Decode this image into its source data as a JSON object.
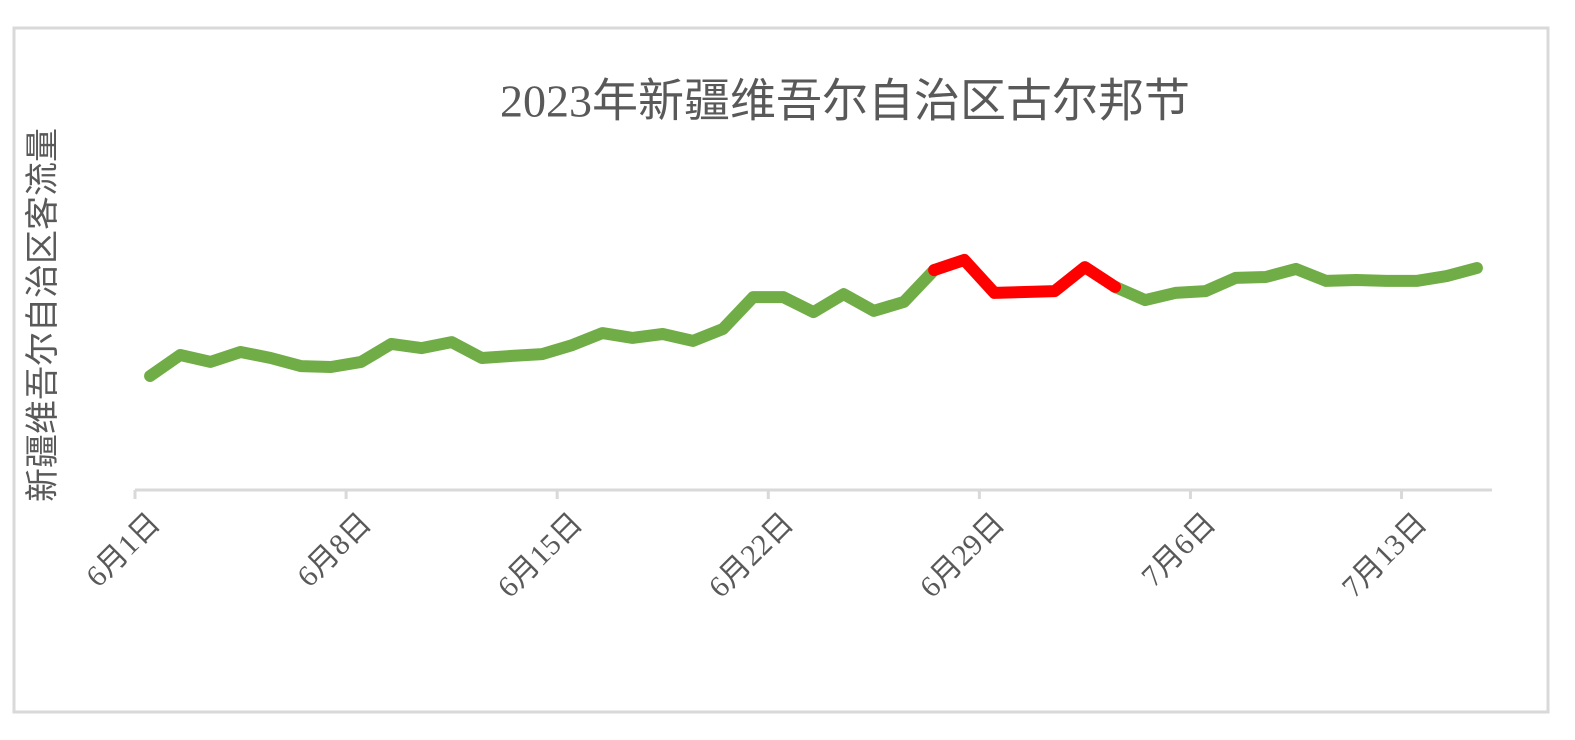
{
  "chart_data": {
    "type": "line",
    "title": "2023年新疆维吾尔自治区古尔邦节",
    "y_label": "新疆维吾尔自治区客流量",
    "categories": [
      "6月1日",
      null,
      null,
      null,
      null,
      null,
      null,
      "6月8日",
      null,
      null,
      null,
      null,
      null,
      null,
      "6月15日",
      null,
      null,
      null,
      null,
      null,
      null,
      "6月22日",
      null,
      null,
      null,
      null,
      null,
      null,
      "6月29日",
      null,
      null,
      null,
      null,
      null,
      null,
      "7月6日",
      null,
      null,
      null,
      null,
      null,
      null,
      "7月13日",
      null,
      null
    ],
    "series": [
      {
        "color": "#70ad47",
        "values": [
          38.0,
          45.0,
          42.7,
          46.0,
          44.0,
          41.3,
          41.0,
          42.7,
          48.7,
          47.3,
          49.3,
          44.0,
          44.7,
          45.3,
          48.3,
          52.3,
          50.7,
          52.0,
          49.7,
          53.7,
          64.3,
          64.3,
          59.3,
          65.3,
          59.7,
          62.7,
          73.3,
          null,
          null,
          null,
          null,
          null,
          67.7,
          63.3,
          65.7,
          66.3,
          70.7,
          71.0,
          73.7,
          69.7,
          70.0,
          69.7,
          69.7,
          71.3,
          74.0
        ]
      },
      {
        "color": "#ff0000",
        "values": [
          null,
          null,
          null,
          null,
          null,
          null,
          null,
          null,
          null,
          null,
          null,
          null,
          null,
          null,
          null,
          null,
          null,
          null,
          null,
          null,
          null,
          null,
          null,
          null,
          null,
          null,
          73.3,
          76.7,
          65.7,
          66.0,
          66.3,
          74.3,
          67.7,
          null,
          null,
          null,
          null,
          null,
          null,
          null,
          null,
          null,
          null,
          null,
          null
        ]
      }
    ],
    "ylim": [
      0,
      100
    ]
  }
}
